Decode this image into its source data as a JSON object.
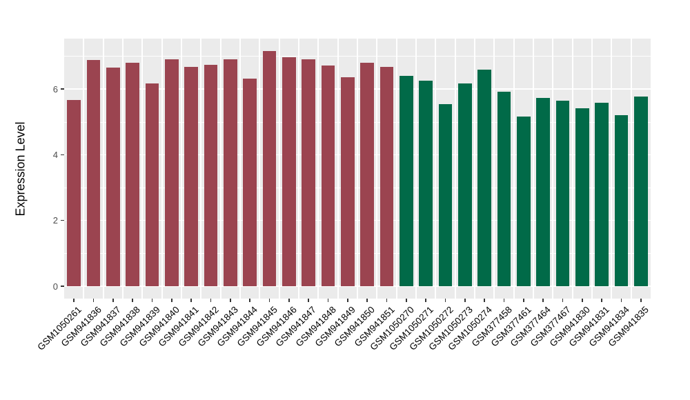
{
  "chart_data": {
    "type": "bar",
    "title": "",
    "xlabel": "",
    "ylabel": "Expression Level",
    "y_tick_labels": [
      "0",
      "2",
      "4",
      "6"
    ],
    "y_tick_values": [
      0,
      2,
      4,
      6
    ],
    "y_minor_values": [
      1,
      3,
      5,
      7
    ],
    "ylim": [
      -0.38,
      7.55
    ],
    "grid": "on",
    "legend_position": "none",
    "panel_background": "#EBEBEB",
    "grid_color": "#FFFFFF",
    "axis_text_color": "#333333",
    "categories": [
      "GSM1050261",
      "GSM941836",
      "GSM941837",
      "GSM941838",
      "GSM941839",
      "GSM941840",
      "GSM941841",
      "GSM941842",
      "GSM941843",
      "GSM941844",
      "GSM941845",
      "GSM941846",
      "GSM941847",
      "GSM941848",
      "GSM941849",
      "GSM941850",
      "GSM941851",
      "GSM1050270",
      "GSM1050271",
      "GSM1050272",
      "GSM1050273",
      "GSM1050274",
      "GSM377458",
      "GSM377461",
      "GSM377464",
      "GSM377467",
      "GSM941830",
      "GSM941831",
      "GSM941834",
      "GSM941835"
    ],
    "values": [
      5.67,
      6.89,
      6.66,
      6.79,
      6.16,
      6.91,
      6.68,
      6.74,
      6.9,
      6.32,
      7.16,
      6.97,
      6.91,
      6.72,
      6.36,
      6.8,
      6.68,
      6.4,
      6.25,
      5.55,
      6.18,
      6.6,
      5.92,
      5.17,
      5.73,
      5.65,
      5.42,
      5.58,
      5.21,
      5.77
    ],
    "bar_groups": [
      "A",
      "A",
      "A",
      "A",
      "A",
      "A",
      "A",
      "A",
      "A",
      "A",
      "A",
      "A",
      "A",
      "A",
      "A",
      "A",
      "A",
      "B",
      "B",
      "B",
      "B",
      "B",
      "B",
      "B",
      "B",
      "B",
      "B",
      "B",
      "B",
      "B"
    ],
    "group_colors": {
      "A": "#9B4450",
      "B": "#016A48"
    }
  }
}
